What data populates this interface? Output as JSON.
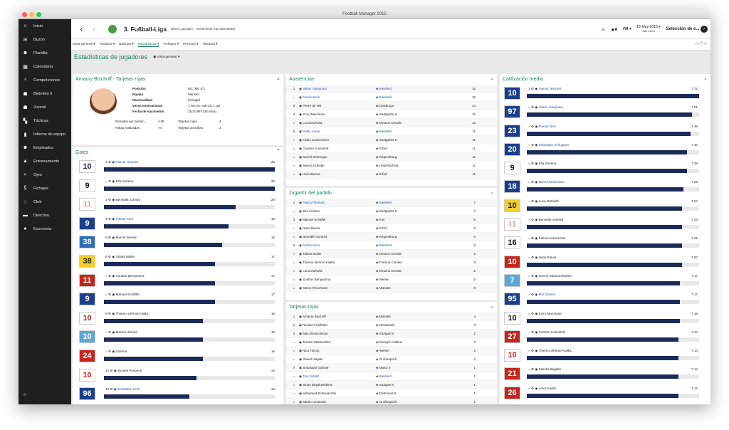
{
  "window": {
    "title": "Football Manager 2015"
  },
  "colors": {
    "accent": "#1b7f5f",
    "bar": "#1c2a57",
    "sidebar": "#1f1f1f",
    "link": "#1f55b3"
  },
  "sidebar": {
    "items": [
      {
        "label": "Inicio",
        "icon": "home-icon"
      },
      {
        "label": "Buzón",
        "icon": "inbox-icon"
      },
      {
        "label": "Plantilla",
        "icon": "squad-icon"
      },
      {
        "label": "Calendario",
        "icon": "calendar-icon"
      },
      {
        "label": "Competiciones",
        "icon": "trophy-icon"
      },
      {
        "label": "Bielefeld II",
        "icon": "team-icon"
      },
      {
        "label": "Juvenil",
        "icon": "youth-icon"
      },
      {
        "label": "Tácticas",
        "icon": "tactics-icon"
      },
      {
        "label": "Informe de equipo",
        "icon": "report-icon"
      },
      {
        "label": "Empleados",
        "icon": "staff-icon"
      },
      {
        "label": "Entrenamiento",
        "icon": "training-icon"
      },
      {
        "label": "Ojeo",
        "icon": "scouting-icon"
      },
      {
        "label": "Fichajes",
        "icon": "transfers-icon"
      },
      {
        "label": "Club",
        "icon": "club-icon"
      },
      {
        "label": "Directiva",
        "icon": "board-icon"
      },
      {
        "label": "Economía",
        "icon": "finance-icon"
      }
    ],
    "version": "i5"
  },
  "topbar": {
    "league": "3. Fußball-Liga",
    "last_winner": "Último ganador - Heidenheim (ID:35010926)",
    "date": "16-May-2015",
    "time": "Sab 14:00",
    "continue": "Selección de e...",
    "manager": "FM"
  },
  "menu": [
    "Vista general",
    "Partidos",
    "Noticias",
    "Estadísticas",
    "Fichajes",
    "Premios",
    "Historial"
  ],
  "page": {
    "title": "Estadísticas de jugadores",
    "view": "Vista general"
  },
  "red_cards": {
    "title": "Amaury Bischoff - Tarjetas rojas",
    "labels": [
      "Posición",
      "Equipo",
      "Nacionalidad",
      "Veces internacional",
      "Fecha de nacimiento"
    ],
    "values": [
      "MC, ME (C)",
      "Münster",
      "Portugal",
      "1 vez int. sub-21/ 1 gol",
      "31/3/1987 (28 años)"
    ],
    "stats": [
      "Entradas por partido",
      "4.85",
      "Tarjetas rojas",
      "4",
      "Faltas realizadas",
      "74",
      "Tarjetas amarillas",
      "3"
    ]
  },
  "goals": {
    "title": "Goles",
    "rows": [
      {
        "rank": "1",
        "kit": "10",
        "name": "Pascal Testroet",
        "value": "26",
        "pct": 1.0,
        "link": true,
        "bg": "#fff",
        "fg": "#1c2a57"
      },
      {
        "rank": "=",
        "kit": "9",
        "name": "Elia Soriano",
        "value": "26",
        "pct": 1.0,
        "bg": "#fff",
        "fg": "#111"
      },
      {
        "rank": "3",
        "kit": "11",
        "name": "Benedikt Schmid",
        "value": "20",
        "pct": 0.77,
        "bg": "#fff",
        "fg": "#e0a0a0"
      },
      {
        "rank": "4",
        "kit": "9",
        "name": "Fabian Klos",
        "value": "19",
        "pct": 0.73,
        "link": true,
        "bg": "#1c3f8c",
        "fg": "#fff"
      },
      {
        "rank": "5",
        "kit": "38",
        "name": "Marcel Ziemer",
        "value": "18",
        "pct": 0.69,
        "bg": "#2d6fb6",
        "fg": "#fff"
      },
      {
        "rank": "6",
        "kit": "38",
        "name": "Tobias Müller",
        "value": "17",
        "pct": 0.65,
        "bg": "#f2cf2a",
        "fg": "#222"
      },
      {
        "rank": "=",
        "kit": "11",
        "name": "Soufian Benyamina",
        "value": "17",
        "pct": 0.65,
        "bg": "#c7261c",
        "fg": "#fff"
      },
      {
        "rank": "=",
        "kit": "9",
        "name": "Manuel Schäffer",
        "value": "17",
        "pct": 0.65,
        "bg": "#1c3f8c",
        "fg": "#fff"
      },
      {
        "rank": "9",
        "kit": "10",
        "name": "Thiemo-Jérôme Kialka",
        "value": "15",
        "pct": 0.58,
        "bg": "#fff",
        "fg": "#c7261c"
      },
      {
        "rank": "=",
        "kit": "10",
        "name": "Markus Ziereis",
        "value": "15",
        "pct": 0.58,
        "bg": "#5aa8d8",
        "fg": "#fff"
      },
      {
        "rank": "=",
        "kit": "24",
        "name": "Cidimar",
        "value": "15",
        "pct": 0.58,
        "bg": "#c7261c",
        "fg": "#fff"
      },
      {
        "rank": "12",
        "kit": "10",
        "name": "Zbynek Pospech",
        "value": "14",
        "pct": 0.54,
        "bg": "#fff",
        "fg": "#c7261c"
      },
      {
        "rank": "13",
        "kit": "96",
        "name": "Sebastian Kerk",
        "value": "13",
        "pct": 0.5,
        "link": true,
        "bg": "#1c3f8c",
        "fg": "#fff"
      },
      {
        "rank": "=",
        "kit": "11",
        "name": "Pascal Köpke",
        "value": "13",
        "pct": 0.5,
        "bg": "#c7261c",
        "fg": "#fff"
      }
    ]
  },
  "assists": {
    "title": "Asistencias",
    "rows": [
      {
        "pos": "1",
        "name": "Valmir Sulejmani",
        "club": "Bielefeld",
        "val": "16",
        "link": true
      },
      {
        "pos": "=",
        "name": "Florian Dick",
        "club": "Bielefeld",
        "val": "16",
        "link": true
      },
      {
        "pos": "3",
        "name": "Pierre de Wit",
        "club": "Duisburgo",
        "val": "14"
      },
      {
        "pos": "4",
        "name": "Enzo Marchese",
        "club": "Stuttgarter K.",
        "val": "12"
      },
      {
        "pos": "=",
        "name": "Luca Dürholtz",
        "club": "Dinamo Dresde",
        "val": "12"
      },
      {
        "pos": "6",
        "name": "Pablo Aimar",
        "club": "Bielefeld",
        "val": "11",
        "link": true
      },
      {
        "pos": "=",
        "name": "Fabio Leutenecker",
        "club": "Stuttgarter K.",
        "val": "11"
      },
      {
        "pos": "=",
        "name": "Carsten Kammlott",
        "club": "Erfurt",
        "val": "11"
      },
      {
        "pos": "=",
        "name": "Daniel Steininger",
        "club": "Regensburg",
        "val": "11"
      },
      {
        "pos": "=",
        "name": "Marius Duhnke",
        "club": "Unterhaching",
        "val": "11"
      },
      {
        "pos": "=",
        "name": "Haris Bukva",
        "club": "Erfurt",
        "val": "11"
      }
    ]
  },
  "motm": {
    "title": "Jugador del partido",
    "rows": [
      {
        "pos": "1",
        "name": "Pascal Testroet",
        "club": "Bielefeld",
        "val": "7",
        "link": true
      },
      {
        "pos": "=",
        "name": "Elia Soriano",
        "club": "Stuttgarter K.",
        "val": "7"
      },
      {
        "pos": "3",
        "name": "Manuel Schäffer",
        "club": "Kiel",
        "val": "6"
      },
      {
        "pos": "=",
        "name": "Haris Bukva",
        "club": "Erfurt",
        "val": "6"
      },
      {
        "pos": "=",
        "name": "Benedikt Schmid",
        "club": "Regensburg",
        "val": "6"
      },
      {
        "pos": "6",
        "name": "Fabian Klos",
        "club": "Bielefeld",
        "val": "5",
        "link": true
      },
      {
        "pos": "=",
        "name": "Tobias Müller",
        "club": "Dinamo Dresde",
        "val": "5"
      },
      {
        "pos": "=",
        "name": "Thiemo-Jérôme Kialka",
        "club": "Fortuna Colonia",
        "val": "5"
      },
      {
        "pos": "=",
        "name": "Luca Dürholtz",
        "club": "Dinamo Dresde",
        "val": "5"
      },
      {
        "pos": "=",
        "name": "Soufian Benyamina",
        "club": "Wehen",
        "val": "5"
      },
      {
        "pos": "=",
        "name": "Marcel Reichwein",
        "club": "Münster",
        "val": "5"
      }
    ]
  },
  "redcards": {
    "title": "Tarjetas rojas",
    "rows": [
      {
        "pos": "1",
        "name": "Amaury Bischoff",
        "club": "Münster",
        "val": "4"
      },
      {
        "pos": "2",
        "name": "Nicolas Feldhahn",
        "club": "Osnabrück",
        "val": "3"
      },
      {
        "pos": "3",
        "name": "Max Besuschkow",
        "club": "Stuttgart II",
        "val": "2"
      },
      {
        "pos": "=",
        "name": "Torsten Mattuschka",
        "club": "Energie Cottbus",
        "val": "2"
      },
      {
        "pos": "=",
        "name": "Nico Herzig",
        "club": "Wehen",
        "val": "2"
      },
      {
        "pos": "=",
        "name": "Daniel Hägele",
        "club": "Großaspach",
        "val": "2"
      },
      {
        "pos": "7",
        "name": "Sebastian Gärtner",
        "club": "Mainz II",
        "val": "1"
      },
      {
        "pos": "=",
        "name": "Tom Schütz",
        "club": "Bielefeld",
        "val": "1",
        "link": true
      },
      {
        "pos": "=",
        "name": "Sinan Büyükasekera",
        "club": "Stuttgart II",
        "val": "1"
      },
      {
        "pos": "=",
        "name": "Mohamed El-Bouazzati",
        "club": "Dortmund II",
        "val": "1"
      },
      {
        "pos": "=",
        "name": "Martin Cimander",
        "club": "Großaspach",
        "val": "1"
      }
    ]
  },
  "rating": {
    "title": "Calificación media",
    "rows": [
      {
        "rank": "1",
        "kit": "10",
        "name": "Pascal Testroet",
        "value": "7.72",
        "pct": 1.0,
        "link": true,
        "bg": "#1c3f8c",
        "fg": "#fff"
      },
      {
        "rank": "=",
        "kit": "97",
        "name": "Valmir Sulejmani",
        "value": "7.51",
        "pct": 0.96,
        "link": true,
        "bg": "#1c3f8c",
        "fg": "#fff"
      },
      {
        "rank": "=",
        "kit": "23",
        "name": "Florian Dick",
        "value": "7.48",
        "pct": 0.95,
        "link": true,
        "bg": "#1c3f8c",
        "fg": "#fff"
      },
      {
        "rank": "=",
        "kit": "20",
        "name": "Sebastian Schuppan",
        "value": "7.40",
        "pct": 0.93,
        "link": true,
        "bg": "#1c3f8c",
        "fg": "#fff"
      },
      {
        "rank": "=",
        "kit": "9",
        "name": "Elia Soriano",
        "value": "7.38",
        "pct": 0.93,
        "bg": "#fff",
        "fg": "#111"
      },
      {
        "rank": "=",
        "kit": "18",
        "name": "Daniel Brinkmann",
        "value": "7.28",
        "pct": 0.91,
        "link": true,
        "bg": "#1c3f8c",
        "fg": "#fff"
      },
      {
        "rank": "=",
        "kit": "10",
        "name": "Luca Dürholtz",
        "value": "7.24",
        "pct": 0.9,
        "bg": "#f2cf2a",
        "fg": "#222"
      },
      {
        "rank": "=",
        "kit": "11",
        "name": "Benedikt Schmid",
        "value": "7.23",
        "pct": 0.9,
        "bg": "#fff",
        "fg": "#e0a0a0"
      },
      {
        "rank": "=",
        "kit": "16",
        "name": "Fabio Leutenecker",
        "value": "7.21",
        "pct": 0.9,
        "bg": "#fff",
        "fg": "#111"
      },
      {
        "rank": "=",
        "kit": "10",
        "name": "Haris Bukva",
        "value": "7.20",
        "pct": 0.9,
        "bg": "#c7261c",
        "fg": "#fff"
      },
      {
        "rank": "=",
        "kit": "7",
        "name": "Ronny Garbuschewski",
        "value": "7.17",
        "pct": 0.89,
        "bg": "#5aa8d8",
        "fg": "#fff"
      },
      {
        "rank": "=",
        "kit": "95",
        "name": "Moi Gómez",
        "value": "7.17",
        "pct": 0.89,
        "link": true,
        "bg": "#1c3f8c",
        "fg": "#fff"
      },
      {
        "rank": "=",
        "kit": "10",
        "name": "Enzo Marchese",
        "value": "7.16",
        "pct": 0.89,
        "bg": "#fff",
        "fg": "#111"
      },
      {
        "rank": "=",
        "kit": "27",
        "name": "Carsten Kammlott",
        "value": "7.14",
        "pct": 0.88,
        "bg": "#c7261c",
        "fg": "#fff"
      },
      {
        "rank": "=",
        "kit": "10",
        "name": "Thiemo-Jérôme Kialka",
        "value": "7.14",
        "pct": 0.88,
        "bg": "#fff",
        "fg": "#c7261c"
      },
      {
        "rank": "=",
        "kit": "21",
        "name": "Sascha Bigalke",
        "value": "7.14",
        "pct": 0.88,
        "bg": "#c7261c",
        "fg": "#fff"
      },
      {
        "rank": "=",
        "kit": "26",
        "name": "Amer Kadric",
        "value": "7.12",
        "pct": 0.88,
        "bg": "#c7261c",
        "fg": "#fff"
      },
      {
        "rank": "=",
        "kit": "11",
        "name": "Stefan Kleineheismann",
        "value": "7.12",
        "pct": 0.88,
        "bg": "#c7261c",
        "fg": "#fff"
      }
    ]
  }
}
